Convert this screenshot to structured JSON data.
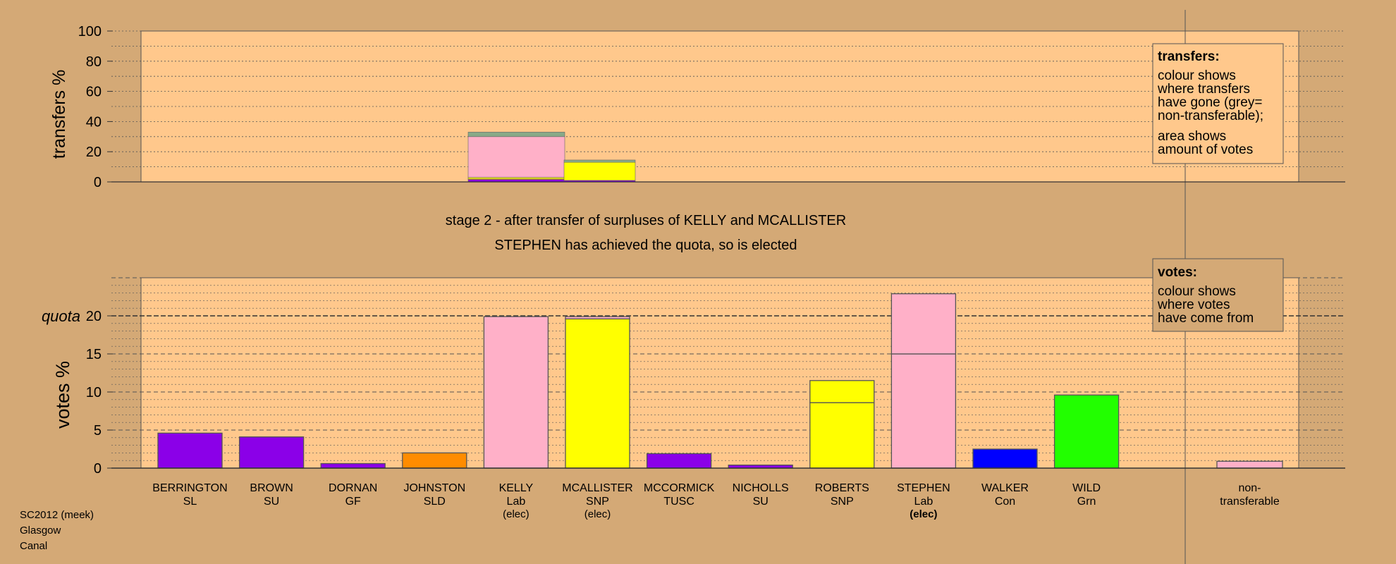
{
  "top_chart": {
    "ylabel": "transfers %",
    "ticks": [
      "0",
      "20",
      "40",
      "60",
      "80",
      "100"
    ],
    "legend": {
      "title": "transfers:",
      "lines1": [
        "colour shows",
        "where transfers",
        "have gone (grey=",
        "non-transferable);"
      ],
      "lines2": [
        "area shows",
        "amount of votes"
      ]
    }
  },
  "stage_line1": "stage 2 - after transfer of surpluses of KELLY and MCALLISTER",
  "stage_line2": "STEPHEN has achieved the quota, so is elected",
  "bottom_chart": {
    "ylabel": "votes %",
    "quota_label": "quota",
    "ticks": [
      "0",
      "5",
      "10",
      "15",
      "20"
    ],
    "legend": {
      "title": "votes:",
      "lines": [
        "colour shows",
        "where votes",
        "have come from"
      ]
    }
  },
  "footer": [
    "SC2012 (meek)",
    "Glasgow",
    "Canal"
  ],
  "chart_data": [
    {
      "type": "bar",
      "title": "stage 2 - after transfer of surpluses of KELLY and MCALLISTER",
      "ylabel": "transfers %",
      "ylim": [
        0,
        100
      ],
      "transfers": [
        {
          "from": "KELLY",
          "width_votes_pct": 0.9,
          "segments": [
            {
              "to": "BERRINGTON",
              "pct": 1.5,
              "color": "#8b00e8"
            },
            {
              "to": "JOHNSTON",
              "pct": 0.5,
              "color": "#ff8c00"
            },
            {
              "to": "ROBERTS",
              "pct": 1.0,
              "color": "#ffff00"
            },
            {
              "to": "STEPHEN",
              "pct": 27.0,
              "color": "#ffb0c8"
            },
            {
              "to": "non-transferable",
              "pct": 3.0,
              "color": "#88aa88"
            }
          ]
        },
        {
          "from": "MCALLISTER",
          "width_votes_pct": 0.7,
          "segments": [
            {
              "to": "MCCORMICK",
              "pct": 1.0,
              "color": "#8b00e8"
            },
            {
              "to": "ROBERTS",
              "pct": 12.0,
              "color": "#ffff00"
            },
            {
              "to": "non-transferable",
              "pct": 1.5,
              "color": "#88aa88"
            }
          ]
        }
      ]
    },
    {
      "type": "bar",
      "title": "STEPHEN has achieved the quota, so is elected",
      "ylabel": "votes %",
      "ylim": [
        0,
        25
      ],
      "quota": 20,
      "categories": [
        {
          "name": "BERRINGTON",
          "party": "SL",
          "elec": "",
          "color": "#8b00e8",
          "value": 4.6,
          "stack": [
            {
              "value": 4.6,
              "color": "#8b00e8"
            }
          ]
        },
        {
          "name": "BROWN",
          "party": "SU",
          "elec": "",
          "color": "#8b00e8",
          "value": 4.1,
          "stack": [
            {
              "value": 4.1,
              "color": "#8b00e8"
            }
          ]
        },
        {
          "name": "DORNAN",
          "party": "GF",
          "elec": "",
          "color": "#8b00e8",
          "value": 0.6,
          "stack": [
            {
              "value": 0.6,
              "color": "#8b00e8"
            }
          ]
        },
        {
          "name": "JOHNSTON",
          "party": "SLD",
          "elec": "",
          "color": "#ff8c00",
          "value": 2.0,
          "stack": [
            {
              "value": 2.0,
              "color": "#ff8c00"
            }
          ]
        },
        {
          "name": "KELLY",
          "party": "Lab",
          "elec": "(elec)",
          "color": "#ffb0c8",
          "value": 19.9,
          "stack": [
            {
              "value": 19.9,
              "color": "#ffb0c8"
            }
          ]
        },
        {
          "name": "MCALLISTER",
          "party": "SNP",
          "elec": "(elec)",
          "color": "#ffff00",
          "value": 19.9,
          "stack": [
            {
              "value": 19.6,
              "color": "#ffff00"
            },
            {
              "value": 0.3,
              "color": "#ffb0c8"
            }
          ]
        },
        {
          "name": "MCCORMICK",
          "party": "TUSC",
          "elec": "",
          "color": "#8b00e8",
          "value": 1.9,
          "stack": [
            {
              "value": 1.9,
              "color": "#8b00e8"
            }
          ]
        },
        {
          "name": "NICHOLLS",
          "party": "SU",
          "elec": "",
          "color": "#8b00e8",
          "value": 0.4,
          "stack": [
            {
              "value": 0.4,
              "color": "#8b00e8"
            }
          ]
        },
        {
          "name": "ROBERTS",
          "party": "SNP",
          "elec": "",
          "color": "#ffff00",
          "value": 11.5,
          "stack": [
            {
              "value": 8.6,
              "color": "#ffff00"
            },
            {
              "value": 2.9,
              "color": "#ffff00"
            }
          ]
        },
        {
          "name": "STEPHEN",
          "party": "Lab",
          "elec": "(elec)",
          "color": "#ffb0c8",
          "value": 22.9,
          "stack": [
            {
              "value": 15.0,
              "color": "#ffb0c8"
            },
            {
              "value": 7.9,
              "color": "#ffb0c8"
            }
          ]
        },
        {
          "name": "WALKER",
          "party": "Con",
          "elec": "",
          "color": "#0000ff",
          "value": 2.5,
          "stack": [
            {
              "value": 2.5,
              "color": "#0000ff"
            }
          ]
        },
        {
          "name": "WILD",
          "party": "Grn",
          "elec": "",
          "color": "#22ff00",
          "value": 9.6,
          "stack": [
            {
              "value": 9.6,
              "color": "#22ff00"
            }
          ]
        }
      ],
      "nontransferable": {
        "label": [
          "non-",
          "transferable"
        ],
        "value": 0.9,
        "color": "#ffb0c8"
      },
      "elected_bold": "STEPHEN"
    }
  ]
}
